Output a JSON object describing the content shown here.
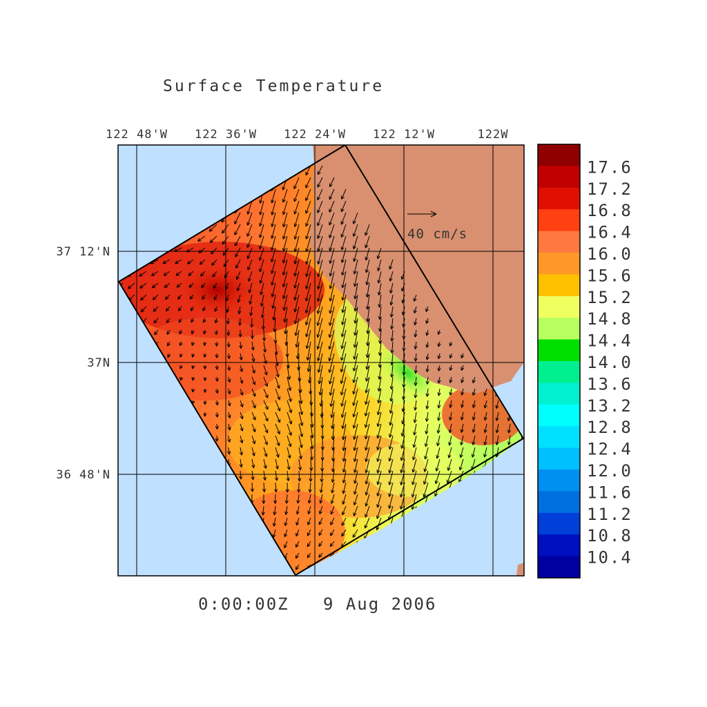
{
  "title": "Surface Temperature",
  "timestamp": "0:00:00Z   9 Aug 2006",
  "lon_ticks": [
    "122 48'W",
    "122 36'W",
    "122 24'W",
    "122 12'W",
    "122W"
  ],
  "lat_ticks": [
    "37 12'N",
    "37N",
    "36 48'N"
  ],
  "scale_arrow_label": "40 cm/s",
  "colorbar": {
    "levels": [
      "17.6",
      "17.2",
      "16.8",
      "16.4",
      "16.0",
      "15.6",
      "15.2",
      "14.8",
      "14.4",
      "14.0",
      "13.6",
      "13.2",
      "12.8",
      "12.4",
      "12.0",
      "11.6",
      "11.2",
      "10.8",
      "10.4"
    ],
    "colors": [
      "#900000",
      "#c00000",
      "#e01000",
      "#ff4010",
      "#ff7840",
      "#ff9828",
      "#ffc000",
      "#f0ff60",
      "#b8ff60",
      "#00e000",
      "#00f090",
      "#00f0d0",
      "#00ffff",
      "#00e0ff",
      "#00c0ff",
      "#0090f0",
      "#0070e0",
      "#0040d8",
      "#0010c0",
      "#0000a0"
    ]
  },
  "colors": {
    "water": "#c0e0ff",
    "land": "#d89070",
    "frame": "#000000"
  }
}
